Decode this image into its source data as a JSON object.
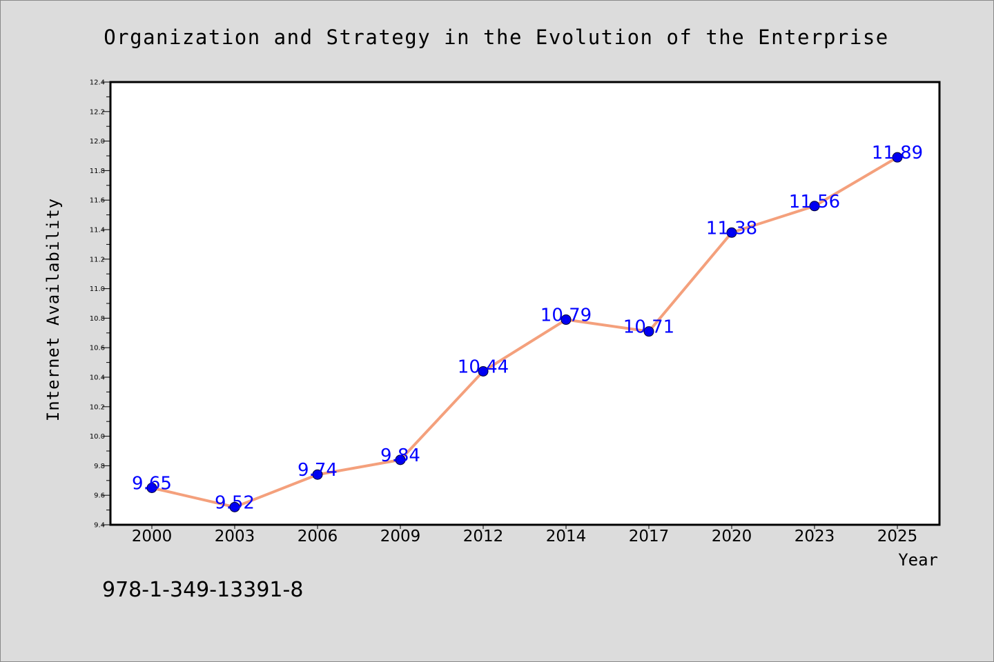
{
  "chart_data": {
    "type": "line",
    "title": "Organization and Strategy in the Evolution of the Enterprise",
    "xlabel": "Year",
    "ylabel": "Internet Availability",
    "categories": [
      "2000",
      "2003",
      "2006",
      "2009",
      "2012",
      "2014",
      "2017",
      "2020",
      "2023",
      "2025"
    ],
    "values": [
      9.65,
      9.52,
      9.74,
      9.84,
      10.44,
      10.79,
      10.71,
      11.38,
      11.56,
      11.89
    ],
    "data_labels": [
      "9.65",
      "9.52",
      "9.74",
      "9.84",
      "10.44",
      "10.79",
      "10.71",
      "11.38",
      "11.56",
      "11.89"
    ],
    "ylim": [
      9.4,
      12.4
    ],
    "yticks": [
      "9.4",
      "9.6",
      "9.8",
      "10.0",
      "10.2",
      "10.4",
      "10.6",
      "10.8",
      "11.0",
      "11.2",
      "11.4",
      "11.6",
      "11.8",
      "12.0",
      "12.2",
      "12.4"
    ],
    "grid": false,
    "legend": "none",
    "line_color": "#f4a07c",
    "marker_color": "#0000ee",
    "label_color": "#0000ff"
  },
  "footer": {
    "isbn": "978-1-349-13391-8"
  }
}
